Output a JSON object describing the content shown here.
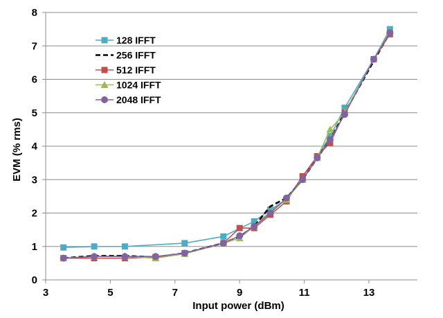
{
  "chart_data": {
    "type": "line",
    "title": "",
    "xlabel": "Input power (dBm)",
    "ylabel": "EVM (% rms)",
    "xlim": [
      3,
      14.5
    ],
    "ylim": [
      0,
      8
    ],
    "x_ticks": [
      3,
      5,
      7,
      9,
      11,
      13
    ],
    "y_ticks": [
      0,
      1,
      2,
      3,
      4,
      5,
      6,
      7,
      8
    ],
    "grid": "horizontal",
    "legend_position": "upper-left",
    "series": [
      {
        "name": "128 IFFT",
        "color": "#4BACC6",
        "marker": "square",
        "dash": "solid",
        "x": [
          3.55,
          4.5,
          5.45,
          7.3,
          8.5,
          9.45,
          9.95,
          10.45,
          10.95,
          11.4,
          11.8,
          12.25,
          13.15,
          13.65
        ],
        "y": [
          0.97,
          1.0,
          1.0,
          1.1,
          1.3,
          1.75,
          2.1,
          2.4,
          3.1,
          3.7,
          4.3,
          5.15,
          6.6,
          7.5
        ]
      },
      {
        "name": "256 IFFT",
        "color": "#000000",
        "marker": "none",
        "dash": "dashed",
        "x": [
          3.55,
          4.5,
          5.45,
          6.4,
          7.3,
          8.5,
          9.0,
          9.45,
          9.95,
          10.45,
          10.95,
          11.4,
          11.8,
          12.25,
          13.15,
          13.65
        ],
        "y": [
          0.65,
          0.72,
          0.72,
          0.68,
          0.8,
          1.1,
          1.3,
          1.6,
          2.2,
          2.45,
          3.0,
          3.65,
          4.2,
          5.0,
          6.55,
          7.4
        ]
      },
      {
        "name": "512 IFFT",
        "color": "#C0504D",
        "marker": "square",
        "dash": "solid",
        "x": [
          3.55,
          4.5,
          5.45,
          6.4,
          7.3,
          8.5,
          9.0,
          9.45,
          9.95,
          10.45,
          10.95,
          11.4,
          11.8,
          12.25,
          13.15,
          13.65
        ],
        "y": [
          0.65,
          0.65,
          0.65,
          0.68,
          0.8,
          1.1,
          1.55,
          1.55,
          1.95,
          2.35,
          3.1,
          3.7,
          4.1,
          5.0,
          6.6,
          7.35
        ]
      },
      {
        "name": "1024 IFFT",
        "color": "#9BBB59",
        "marker": "triangle",
        "dash": "solid",
        "x": [
          3.55,
          4.5,
          5.45,
          6.4,
          7.3,
          8.5,
          9.0,
          9.45,
          9.95,
          10.45,
          10.95,
          11.4,
          11.8,
          12.25,
          13.15,
          13.65
        ],
        "y": [
          0.65,
          0.7,
          0.7,
          0.65,
          0.78,
          1.1,
          1.25,
          1.6,
          2.05,
          2.4,
          3.0,
          3.65,
          4.5,
          5.0,
          6.6,
          7.45
        ]
      },
      {
        "name": "2048 IFFT",
        "color": "#8064A2",
        "marker": "circle",
        "dash": "solid",
        "x": [
          3.55,
          4.5,
          5.45,
          6.4,
          7.3,
          8.5,
          9.0,
          9.45,
          9.95,
          10.45,
          10.95,
          11.4,
          11.8,
          12.25,
          13.15,
          13.65
        ],
        "y": [
          0.65,
          0.7,
          0.7,
          0.7,
          0.8,
          1.1,
          1.32,
          1.6,
          2.0,
          2.45,
          3.0,
          3.65,
          4.2,
          4.95,
          6.6,
          7.4
        ]
      }
    ]
  }
}
